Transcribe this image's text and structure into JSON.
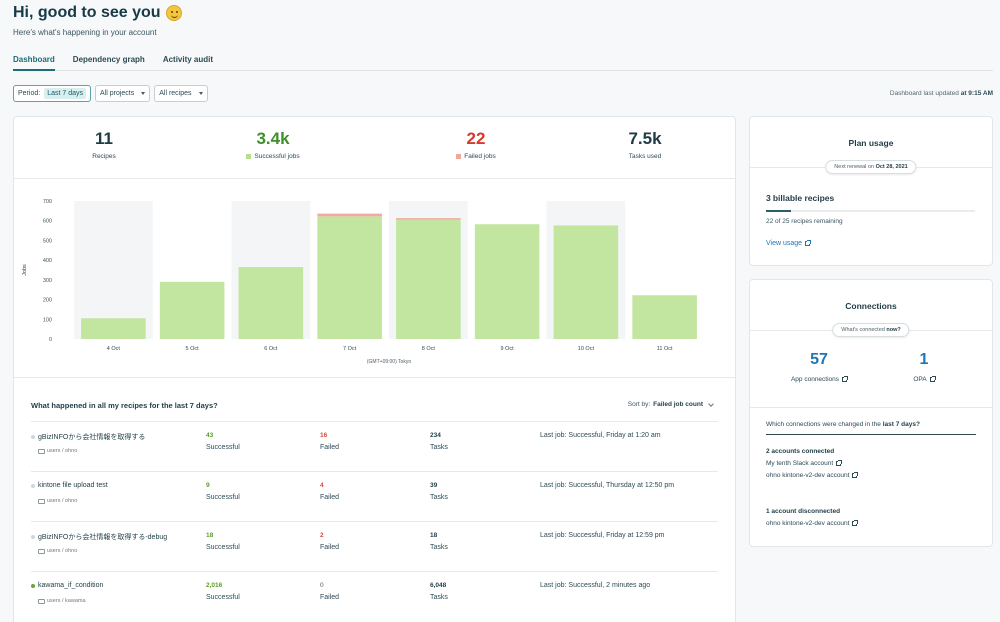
{
  "header": {
    "greeting": "Hi, good to see you",
    "greeting_emoji": "smiling-face-icon",
    "subtitle": "Here's what's happening in your account"
  },
  "tabs": [
    {
      "label": "Dashboard",
      "active": true
    },
    {
      "label": "Dependency graph"
    },
    {
      "label": "Activity audit"
    }
  ],
  "filters": {
    "period_label": "Period:",
    "period_value": "Last 7 days",
    "projects": "All projects",
    "recipes": "All recipes"
  },
  "updated": {
    "prefix": "Dashboard last updated",
    "time": "at 9:15 AM"
  },
  "stats": [
    {
      "value": "11",
      "label": "Recipes"
    },
    {
      "value": "3.4k",
      "label": "Successful jobs",
      "color": "#3f8f2a",
      "marker": "#b6e08f"
    },
    {
      "value": "22",
      "label": "Failed jobs",
      "color": "#d9392c",
      "marker": "#f2a6a0"
    },
    {
      "value": "7.5k",
      "label": "Tasks used"
    }
  ],
  "chart_data": {
    "type": "bar",
    "categories": [
      "4 Oct",
      "5 Oct",
      "6 Oct",
      "7 Oct",
      "8 Oct",
      "9 Oct",
      "10 Oct",
      "11 Oct"
    ],
    "series": [
      {
        "name": "Successful jobs",
        "color": "#c2e6a0",
        "values": [
          105,
          290,
          365,
          622,
          605,
          582,
          576,
          222
        ]
      },
      {
        "name": "Failed jobs",
        "color": "#f2a9a3",
        "values": [
          0,
          0,
          0,
          14,
          8,
          0,
          0,
          0
        ]
      }
    ],
    "ylabel": "Jobs",
    "xlabel": "(GMT+09:00) Tokyo",
    "ylim": [
      0,
      700
    ],
    "yticks": [
      "0",
      "100",
      "200",
      "300",
      "400",
      "500",
      "600",
      "700"
    ],
    "stacked": true
  },
  "recipes": {
    "heading": "What happened in all my recipes for the last 7 days?",
    "sort_label": "Sort by:",
    "sort_value": "Failed job count",
    "rows": [
      {
        "name": "gBizINFOから会社情報を取得する",
        "path": "users / ohno",
        "active": false,
        "successful": "43",
        "failed": "16",
        "failed_color": "red",
        "tasks": "234",
        "last_job": "Last job: Successful, Friday at 1:20 am"
      },
      {
        "name": "kintone file upload test",
        "path": "users / ohno",
        "active": false,
        "successful": "9",
        "failed": "4",
        "failed_color": "red",
        "tasks": "39",
        "last_job": "Last job: Successful, Thursday at 12:50 pm"
      },
      {
        "name": "gBizINFOから会社情報を取得する-debug",
        "path": "users / ohno",
        "active": false,
        "successful": "18",
        "failed": "2",
        "failed_color": "red",
        "tasks": "18",
        "last_job": "Last job: Successful, Friday at 12:59 pm"
      },
      {
        "name": "kawama_if_condition",
        "path": "users / kawama",
        "active": true,
        "successful": "2,016",
        "failed": "0",
        "failed_color": "grey",
        "tasks": "6,048",
        "last_job": "Last job: Successful, 2 minutes ago"
      }
    ],
    "labels": {
      "successful": "Successful",
      "failed": "Failed",
      "tasks": "Tasks"
    }
  },
  "plan": {
    "title": "Plan usage",
    "renewal_prefix": "Next renewal on",
    "renewal_date": "Oct 28, 2021",
    "billable_count": "3",
    "billable_label": "billable recipes",
    "used_fraction": 0.12,
    "remaining": "22 of 25 recipes remaining",
    "view_usage": "View usage"
  },
  "connections": {
    "title": "Connections",
    "chip_prefix": "What's connected",
    "chip_now": "now?",
    "app_count": "57",
    "app_label": "App connections",
    "opa_count": "1",
    "opa_label": "OPA",
    "changed_prefix": "Which connections were changed in the",
    "changed_period": "last 7 days?",
    "connected_heading": "2 accounts connected",
    "connected": [
      "My tenth Slack account",
      "ohno kintone-v2-dev account"
    ],
    "disconnected_heading": "1 account disconnected",
    "disconnected": [
      "ohno kintone-v2-dev account"
    ]
  }
}
